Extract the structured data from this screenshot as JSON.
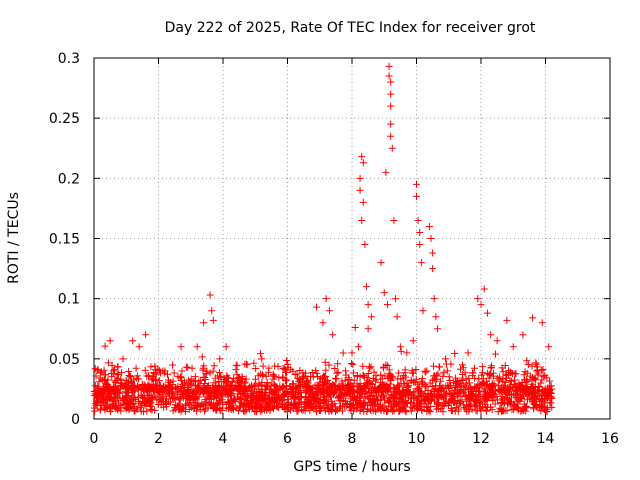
{
  "chart_data": {
    "type": "scatter",
    "title": "Day 222 of 2025, Rate Of TEC Index for receiver grot",
    "xlabel": "GPS time / hours",
    "ylabel": "ROTI / TECUs",
    "xlim": [
      0,
      16
    ],
    "ylim": [
      0,
      0.3
    ],
    "xticks": [
      0,
      2,
      4,
      6,
      8,
      10,
      12,
      14,
      16
    ],
    "xtick_labels": [
      "0",
      "2",
      "4",
      "6",
      "8",
      "10",
      "12",
      "14",
      "16"
    ],
    "yticks": [
      0,
      0.05,
      0.1,
      0.15,
      0.2,
      0.25,
      0.3
    ],
    "ytick_labels": [
      "0",
      "0.05",
      "0.1",
      "0.15",
      "0.2",
      "0.25",
      "0.3"
    ],
    "grid": true,
    "marker": "plus",
    "color": "#ff0000",
    "data_range": [
      0,
      14.2
    ],
    "points": [
      [
        0.1,
        0.015
      ],
      [
        0.3,
        0.02
      ],
      [
        0.5,
        0.065
      ],
      [
        0.6,
        0.04
      ],
      [
        0.9,
        0.05
      ],
      [
        1.2,
        0.065
      ],
      [
        1.4,
        0.06
      ],
      [
        1.6,
        0.07
      ],
      [
        2.2,
        0.04
      ],
      [
        2.7,
        0.06
      ],
      [
        3.2,
        0.06
      ],
      [
        3.4,
        0.08
      ],
      [
        3.6,
        0.103
      ],
      [
        3.65,
        0.09
      ],
      [
        3.7,
        0.082
      ],
      [
        3.9,
        0.05
      ],
      [
        4.1,
        0.06
      ],
      [
        5.2,
        0.05
      ],
      [
        6.5,
        0.035
      ],
      [
        6.9,
        0.093
      ],
      [
        7.1,
        0.08
      ],
      [
        7.2,
        0.1
      ],
      [
        7.3,
        0.09
      ],
      [
        7.4,
        0.07
      ],
      [
        7.8,
        0.04
      ],
      [
        8.0,
        0.055
      ],
      [
        8.1,
        0.076
      ],
      [
        8.2,
        0.06
      ],
      [
        8.25,
        0.2
      ],
      [
        8.25,
        0.19
      ],
      [
        8.3,
        0.218
      ],
      [
        8.3,
        0.165
      ],
      [
        8.35,
        0.213
      ],
      [
        8.35,
        0.18
      ],
      [
        8.4,
        0.145
      ],
      [
        8.45,
        0.11
      ],
      [
        8.5,
        0.095
      ],
      [
        8.5,
        0.075
      ],
      [
        8.6,
        0.085
      ],
      [
        8.9,
        0.13
      ],
      [
        9.0,
        0.105
      ],
      [
        9.05,
        0.205
      ],
      [
        9.1,
        0.095
      ],
      [
        9.15,
        0.293
      ],
      [
        9.15,
        0.285
      ],
      [
        9.2,
        0.28
      ],
      [
        9.2,
        0.27
      ],
      [
        9.2,
        0.26
      ],
      [
        9.2,
        0.245
      ],
      [
        9.2,
        0.235
      ],
      [
        9.25,
        0.225
      ],
      [
        9.3,
        0.165
      ],
      [
        9.35,
        0.1
      ],
      [
        9.4,
        0.085
      ],
      [
        9.5,
        0.06
      ],
      [
        9.7,
        0.055
      ],
      [
        9.9,
        0.065
      ],
      [
        10.0,
        0.195
      ],
      [
        10.0,
        0.185
      ],
      [
        10.05,
        0.165
      ],
      [
        10.1,
        0.155
      ],
      [
        10.1,
        0.145
      ],
      [
        10.15,
        0.13
      ],
      [
        10.2,
        0.09
      ],
      [
        10.4,
        0.16
      ],
      [
        10.45,
        0.15
      ],
      [
        10.5,
        0.138
      ],
      [
        10.5,
        0.125
      ],
      [
        10.55,
        0.1
      ],
      [
        10.6,
        0.085
      ],
      [
        10.65,
        0.075
      ],
      [
        10.9,
        0.05
      ],
      [
        11.6,
        0.055
      ],
      [
        11.9,
        0.1
      ],
      [
        12.0,
        0.095
      ],
      [
        12.1,
        0.108
      ],
      [
        12.2,
        0.088
      ],
      [
        12.3,
        0.07
      ],
      [
        12.5,
        0.065
      ],
      [
        12.8,
        0.082
      ],
      [
        13.0,
        0.06
      ],
      [
        13.3,
        0.07
      ],
      [
        13.6,
        0.084
      ],
      [
        13.9,
        0.08
      ],
      [
        14.1,
        0.06
      ]
    ]
  }
}
